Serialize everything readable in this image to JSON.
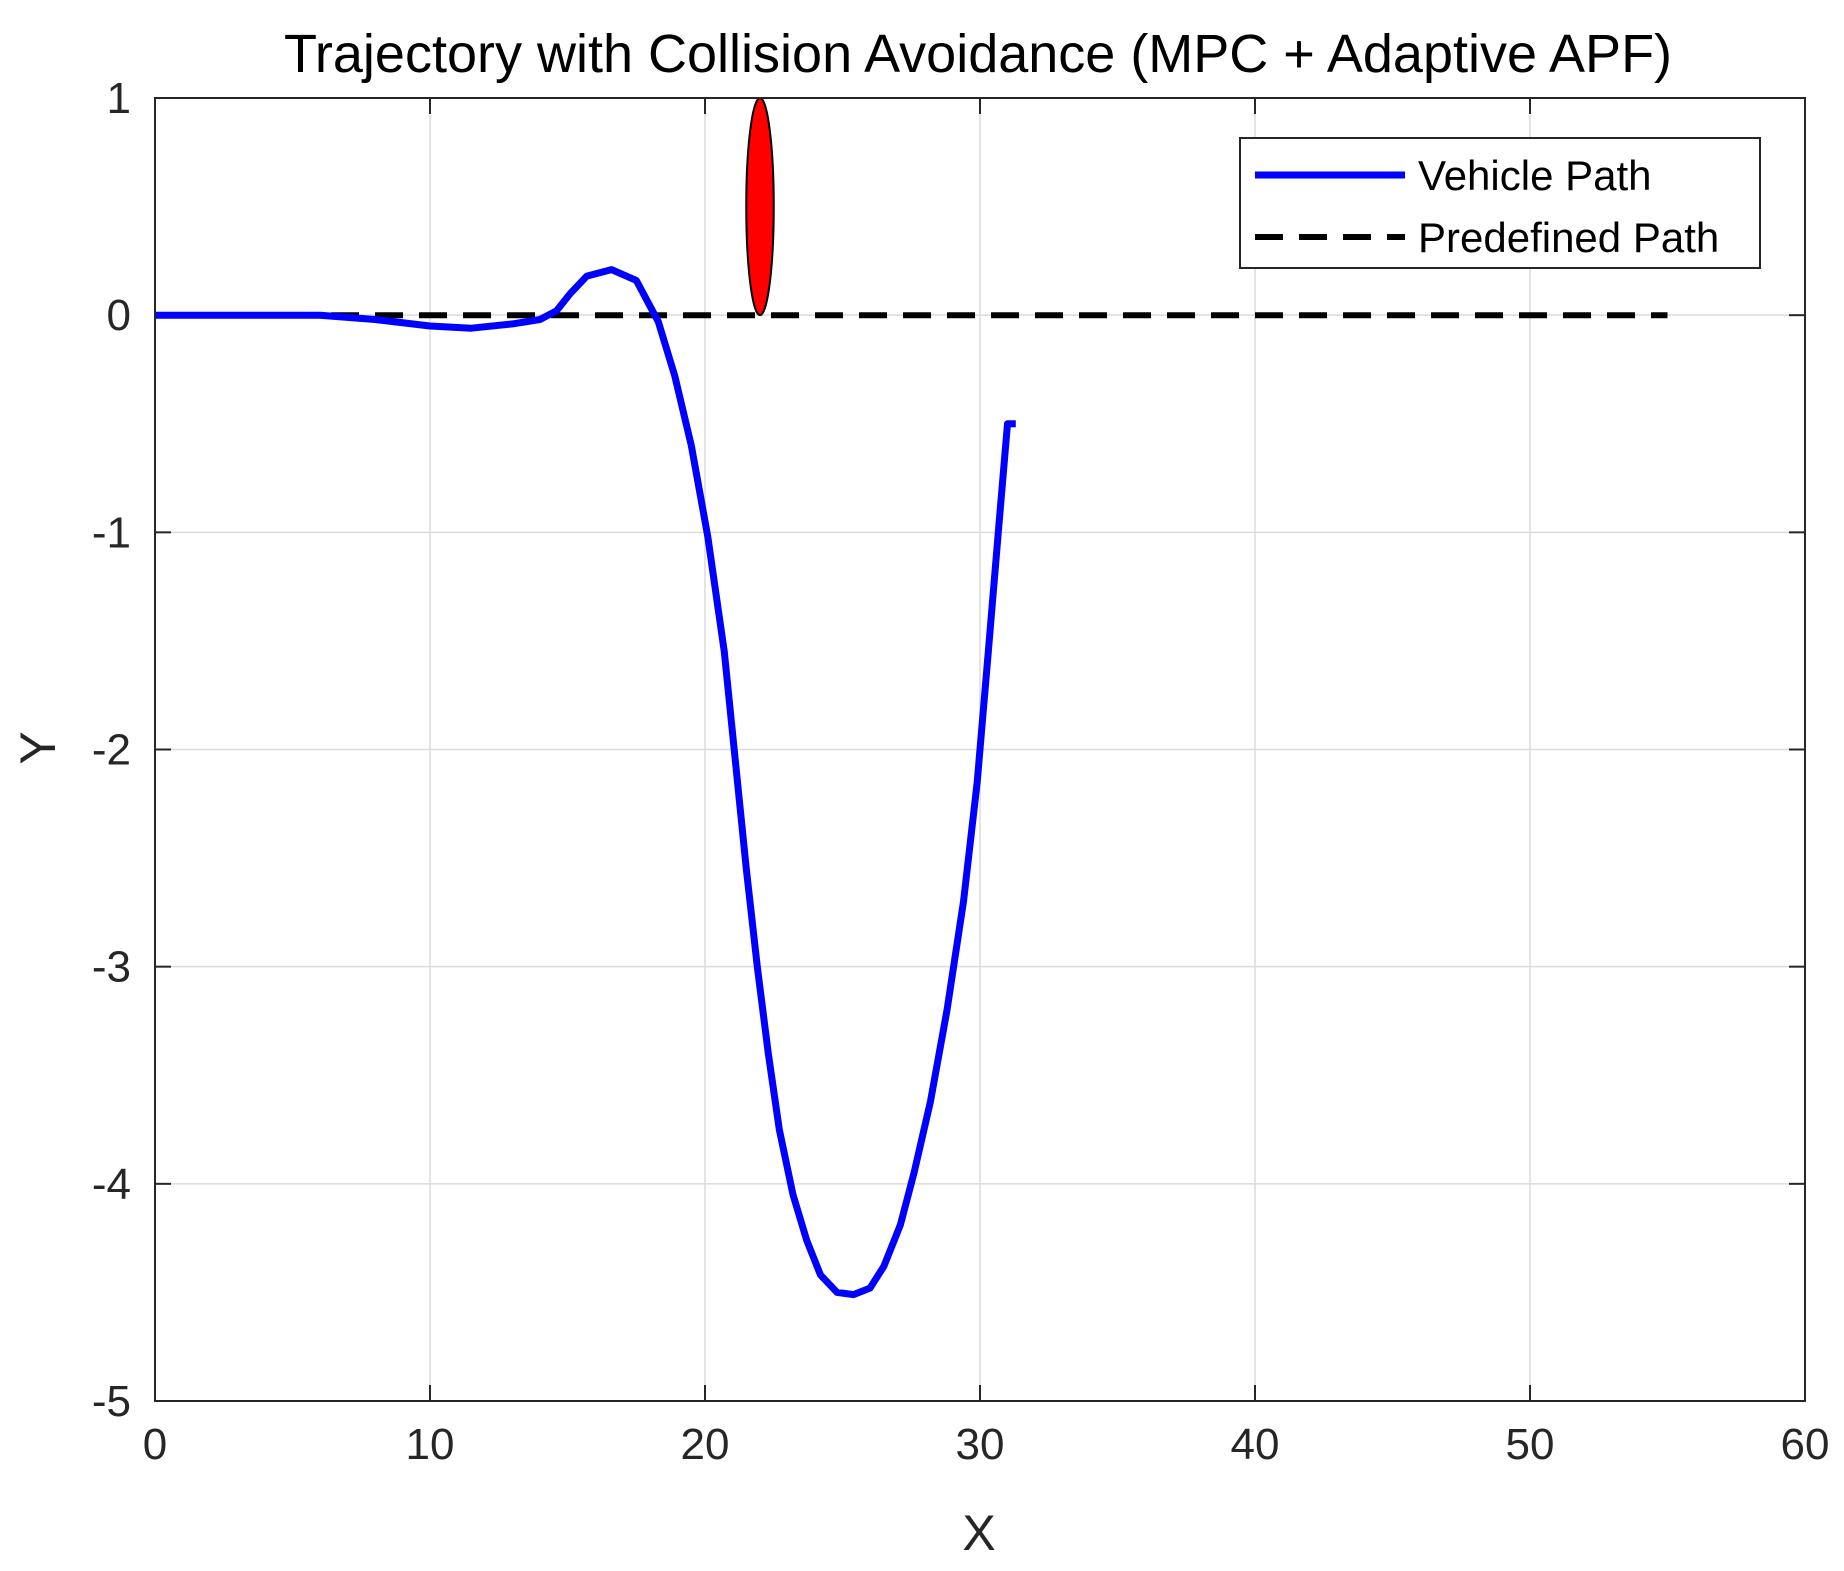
{
  "chart_data": {
    "type": "line",
    "title": "Trajectory with Collision Avoidance (MPC + Adaptive APF)",
    "xlabel": "X",
    "ylabel": "Y",
    "xlim": [
      0,
      60
    ],
    "ylim": [
      -5,
      1
    ],
    "xticks": [
      "0",
      "10",
      "20",
      "30",
      "40",
      "50",
      "60"
    ],
    "yticks": [
      "1",
      "0",
      "-1",
      "-2",
      "-3",
      "-4",
      "-5"
    ],
    "grid": true,
    "legend_position": "top-right",
    "series": [
      {
        "name": "Vehicle Path",
        "color": "#0000ff",
        "style": "solid",
        "x": [
          0,
          2,
          4,
          6,
          8,
          10,
          11.5,
          13,
          14,
          14.6,
          15.1,
          15.7,
          16.6,
          17.5,
          18.3,
          18.9,
          19.5,
          20.1,
          20.7,
          21.1,
          21.5,
          21.9,
          22.3,
          22.7,
          23.2,
          23.7,
          24.2,
          24.8,
          25.4,
          26.0,
          26.5,
          27.1,
          27.6,
          28.2,
          28.8,
          29.4,
          29.9,
          30.3,
          30.7,
          31.0,
          31.3
        ],
        "y": [
          0,
          0,
          0,
          0,
          -0.02,
          -0.05,
          -0.06,
          -0.04,
          -0.02,
          0.02,
          0.1,
          0.18,
          0.21,
          0.16,
          -0.03,
          -0.28,
          -0.6,
          -1.02,
          -1.55,
          -2.05,
          -2.55,
          -3.0,
          -3.4,
          -3.75,
          -4.05,
          -4.26,
          -4.42,
          -4.5,
          -4.51,
          -4.48,
          -4.38,
          -4.19,
          -3.95,
          -3.62,
          -3.2,
          -2.7,
          -2.15,
          -1.55,
          -0.95,
          -0.5,
          -0.5
        ]
      },
      {
        "name": "Predefined Path",
        "color": "#000000",
        "style": "dashed",
        "x": [
          0,
          55
        ],
        "y": [
          0,
          0
        ]
      }
    ],
    "obstacle": {
      "shape": "ellipse",
      "center": [
        22,
        0.5
      ],
      "radius_x": 0.5,
      "radius_y": 0.5,
      "fill": "#ff0000",
      "stroke": "#000000"
    }
  }
}
